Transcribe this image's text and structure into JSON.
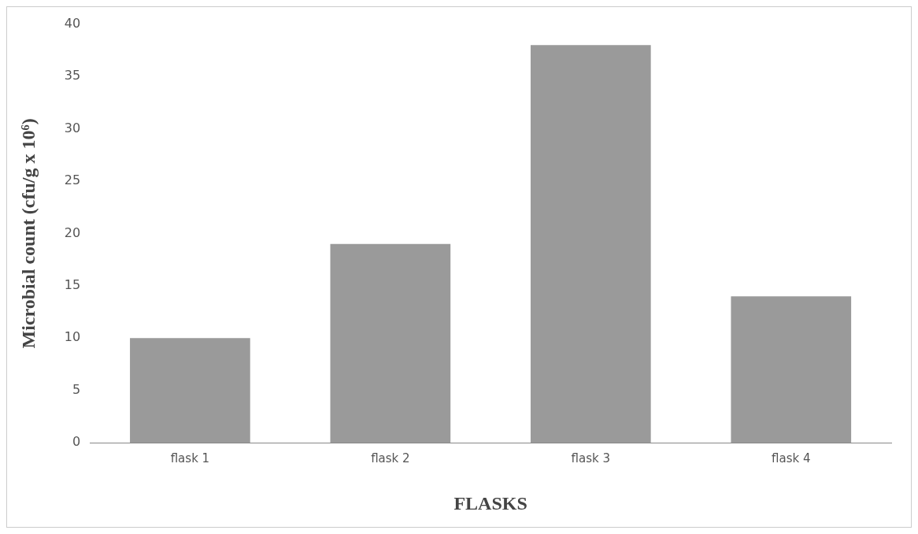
{
  "chart_data": {
    "type": "bar",
    "xlabel": "FLASKS",
    "ylabel": "Microbial count (cfu/g x 10⁶)",
    "categories": [
      "flask 1",
      "flask 2",
      "flask 3",
      "flask 4"
    ],
    "values": [
      10,
      19,
      38,
      14
    ],
    "color": "#9a9a9a",
    "ylim": [
      0,
      40
    ],
    "yticks": [
      0,
      5,
      10,
      15,
      20,
      25,
      30,
      35,
      40
    ],
    "grid": false,
    "legend": false
  }
}
